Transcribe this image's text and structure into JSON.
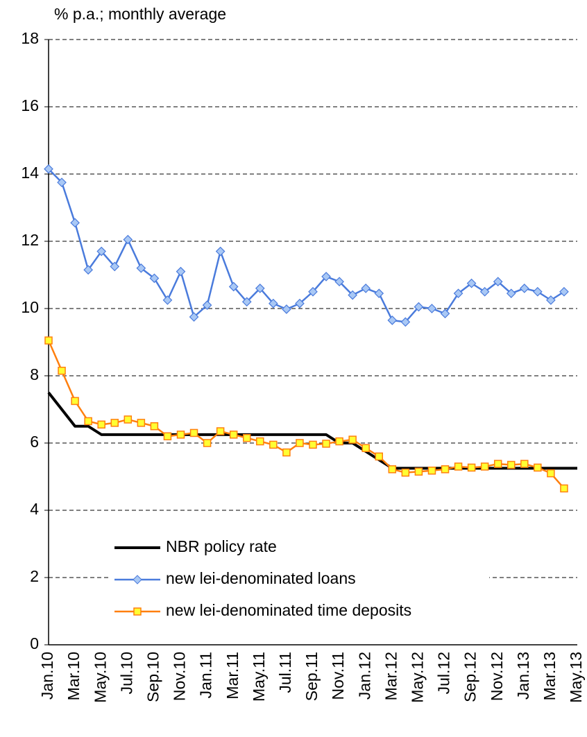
{
  "chart_data": {
    "type": "line",
    "ylabel": "% p.a.; monthly average",
    "categories": [
      "Jan.10",
      null,
      "Mar.10",
      null,
      "May.10",
      null,
      "Jul.10",
      null,
      "Sep.10",
      null,
      "Nov.10",
      null,
      "Jan.11",
      null,
      "Mar.11",
      null,
      "May.11",
      null,
      "Jul.11",
      null,
      "Sep.11",
      null,
      "Nov.11",
      null,
      "Jan.12",
      null,
      "Mar.12",
      null,
      "May.12",
      null,
      "Jul.12",
      null,
      "Sep.12",
      null,
      "Nov.12",
      null,
      "Jan.13",
      null,
      "Mar.13",
      null,
      "May.13"
    ],
    "series": [
      {
        "name": "NBR policy rate",
        "color": "#000000",
        "marker": "none",
        "values": [
          7.5,
          7.0,
          6.5,
          6.5,
          6.25,
          6.25,
          6.25,
          6.25,
          6.25,
          6.25,
          6.25,
          6.25,
          6.25,
          6.25,
          6.25,
          6.25,
          6.25,
          6.25,
          6.25,
          6.25,
          6.25,
          6.25,
          6.0,
          6.0,
          5.75,
          5.5,
          5.25,
          5.25,
          5.25,
          5.25,
          5.25,
          5.25,
          5.25,
          5.25,
          5.25,
          5.25,
          5.25,
          5.25,
          5.25,
          5.25,
          5.25
        ]
      },
      {
        "name": "new lei-denominated loans",
        "color": "#4a7bdc",
        "marker": "diamond",
        "marker_color": "#a9c8f5",
        "values": [
          14.15,
          13.75,
          12.55,
          11.15,
          11.7,
          11.25,
          12.05,
          11.2,
          10.9,
          10.25,
          11.1,
          9.75,
          10.1,
          11.7,
          10.65,
          10.2,
          10.6,
          10.15,
          9.98,
          10.15,
          10.5,
          10.95,
          10.8,
          10.4,
          10.6,
          10.45,
          9.65,
          9.6,
          10.05,
          10.0,
          9.85,
          10.45,
          10.75,
          10.5,
          10.8,
          10.45,
          10.6,
          10.5,
          10.25,
          10.5,
          null
        ]
      },
      {
        "name": "new lei-denominated time deposits",
        "color": "#ff7f0e",
        "marker": "square",
        "marker_color": "#ffff33",
        "values": [
          9.05,
          8.15,
          7.25,
          6.65,
          6.55,
          6.6,
          6.7,
          6.6,
          6.5,
          6.2,
          6.25,
          6.3,
          6.0,
          6.35,
          6.25,
          6.15,
          6.05,
          5.95,
          5.72,
          6.0,
          5.95,
          5.98,
          6.05,
          6.1,
          5.85,
          5.6,
          5.22,
          5.12,
          5.15,
          5.18,
          5.22,
          5.3,
          5.27,
          5.3,
          5.38,
          5.35,
          5.38,
          5.27,
          5.1,
          4.65,
          null
        ]
      }
    ],
    "ylim": [
      0,
      18
    ],
    "yticks": [
      0,
      2,
      4,
      6,
      8,
      10,
      12,
      14,
      16,
      18
    ],
    "grid": true,
    "legend": "lower center"
  }
}
